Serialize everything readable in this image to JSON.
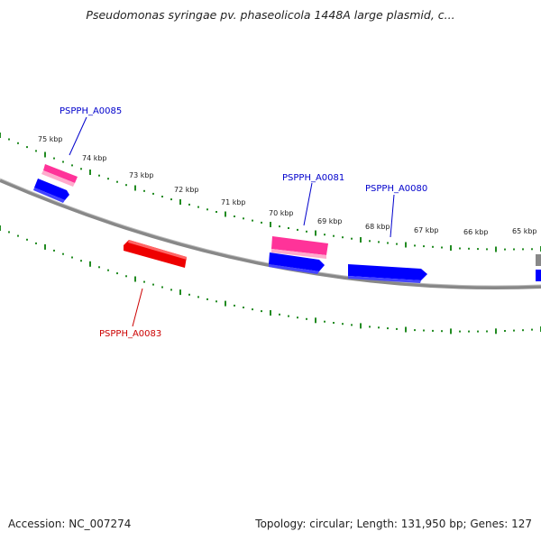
{
  "title": "Pseudomonas syringae pv. phaseolicola 1448A large plasmid, c...",
  "footer": {
    "accession": "Accession: NC_007274",
    "summary": "Topology: circular; Length: 131,950 bp; Genes: 127"
  },
  "ticks": [
    {
      "label": "75 kbp"
    },
    {
      "label": "74 kbp"
    },
    {
      "label": "73 kbp"
    },
    {
      "label": "72 kbp"
    },
    {
      "label": "71 kbp"
    },
    {
      "label": "70 kbp"
    },
    {
      "label": "69 kbp"
    },
    {
      "label": "68 kbp"
    },
    {
      "label": "67 kbp"
    },
    {
      "label": "66 kbp"
    },
    {
      "label": "65 kbp"
    }
  ],
  "gene_labels": [
    {
      "name": "PSPPH_A0085",
      "color": "#0000cc"
    },
    {
      "name": "PSPPH_A0081",
      "color": "#0000cc"
    },
    {
      "name": "PSPPH_A0080",
      "color": "#0000cc"
    },
    {
      "name": "PSPPH_A0083",
      "color": "#cc0000"
    }
  ],
  "colors": {
    "backbone": "#888888",
    "tick": "#228b22",
    "forward_gene": "#0000ff",
    "reverse_gene": "#ff0000",
    "highlight_gene": "#ff3399"
  }
}
